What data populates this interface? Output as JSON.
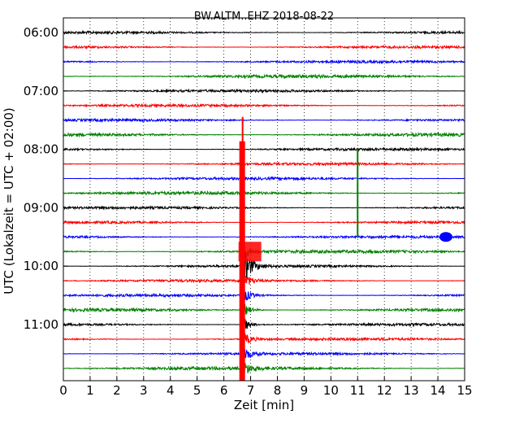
{
  "chart_data": {
    "type": "line",
    "title": "BW.ALTM..EHZ 2018-08-22",
    "xlabel": "Zeit  [min]",
    "ylabel": "UTC (Lokalzeit = UTC + 02:00)",
    "xlim": [
      0,
      15
    ],
    "x_ticks": [
      "0",
      "1",
      "2",
      "3",
      "4",
      "5",
      "6",
      "7",
      "8",
      "9",
      "10",
      "11",
      "12",
      "13",
      "14",
      "15"
    ],
    "y_tick_labels": [
      "06:00",
      "07:00",
      "08:00",
      "09:00",
      "10:00",
      "11:00"
    ],
    "trace_start_times": [
      "06:00",
      "06:15",
      "06:30",
      "06:45",
      "07:00",
      "07:15",
      "07:30",
      "07:45",
      "08:00",
      "08:15",
      "08:30",
      "08:45",
      "09:00",
      "09:15",
      "09:30",
      "09:45",
      "10:00",
      "10:15",
      "10:30",
      "10:45",
      "11:00",
      "11:15",
      "11:30",
      "11:45"
    ],
    "trace_colors": [
      "#000000",
      "#ff0000",
      "#0000ff",
      "#008000"
    ],
    "grid": "vertical dotted at each minute",
    "events": [
      {
        "trace": "10:15",
        "minute": 6.7,
        "note": "large earthquake signal, saturated across traces 08:00–11:45"
      },
      {
        "trace": "08:45",
        "minute": 11.0,
        "note": "spike"
      },
      {
        "trace": "09:30",
        "minute": 14.3,
        "note": "burst"
      }
    ]
  }
}
